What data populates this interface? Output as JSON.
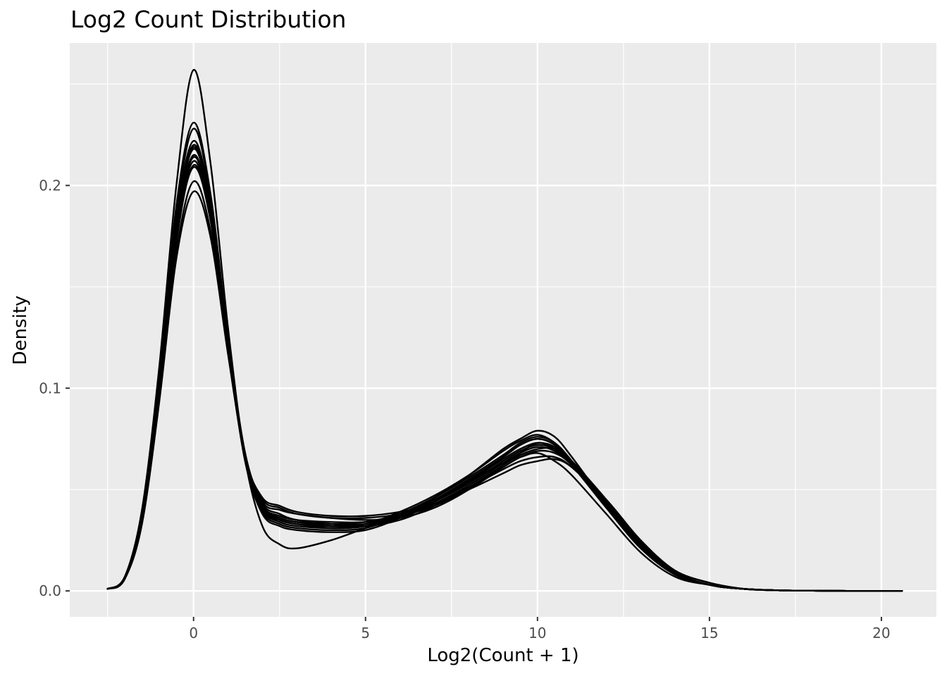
{
  "chart_data": {
    "type": "line",
    "title": "Log2 Count Distribution",
    "xlabel": "Log2(Count + 1)",
    "ylabel": "Density",
    "xlim": [
      -3.6,
      21.6
    ],
    "ylim": [
      -0.0128,
      0.2703
    ],
    "x_ticks": [
      0,
      5,
      10,
      15,
      20
    ],
    "x_tick_labels": [
      "0",
      "5",
      "10",
      "15",
      "20"
    ],
    "y_ticks": [
      0.0,
      0.1,
      0.2
    ],
    "y_tick_labels": [
      "0.0",
      "0.1",
      "0.2"
    ],
    "grid": true,
    "legend": "none",
    "line_color": "#000000",
    "panel_background": "#ebebeb",
    "x": [
      -2.5,
      -2,
      -1.5,
      -1,
      -0.5,
      0,
      0.5,
      1,
      1.5,
      2,
      2.5,
      3,
      4,
      5,
      6,
      7,
      8,
      9,
      9.5,
      10,
      10.5,
      11,
      12,
      13,
      14,
      15,
      16,
      17,
      18,
      19,
      20,
      20.6
    ],
    "series": [
      {
        "values": [
          0.001,
          0.007,
          0.04,
          0.11,
          0.2,
          0.257,
          0.21,
          0.13,
          0.065,
          0.032,
          0.023,
          0.021,
          0.025,
          0.031,
          0.037,
          0.045,
          0.054,
          0.063,
          0.066,
          0.068,
          0.064,
          0.057,
          0.038,
          0.019,
          0.007,
          0.003,
          0.001,
          0.0003,
          0.0001,
          0,
          0,
          0
        ]
      },
      {
        "values": [
          0.001,
          0.006,
          0.038,
          0.106,
          0.19,
          0.231,
          0.195,
          0.125,
          0.068,
          0.044,
          0.04,
          0.038,
          0.036,
          0.035,
          0.036,
          0.041,
          0.05,
          0.062,
          0.068,
          0.073,
          0.07,
          0.062,
          0.041,
          0.021,
          0.008,
          0.003,
          0.001,
          0.0003,
          0.0001,
          0,
          0,
          0
        ]
      },
      {
        "values": [
          0.001,
          0.006,
          0.037,
          0.104,
          0.186,
          0.228,
          0.193,
          0.124,
          0.066,
          0.042,
          0.036,
          0.034,
          0.033,
          0.034,
          0.038,
          0.045,
          0.054,
          0.066,
          0.072,
          0.075,
          0.072,
          0.063,
          0.042,
          0.022,
          0.009,
          0.003,
          0.001,
          0.0003,
          0.0001,
          0,
          0,
          0
        ]
      },
      {
        "values": [
          0.001,
          0.006,
          0.037,
          0.102,
          0.183,
          0.222,
          0.19,
          0.123,
          0.066,
          0.041,
          0.035,
          0.033,
          0.032,
          0.033,
          0.039,
          0.047,
          0.057,
          0.069,
          0.074,
          0.077,
          0.073,
          0.064,
          0.042,
          0.022,
          0.009,
          0.003,
          0.001,
          0.0003,
          0.0001,
          0,
          0,
          0
        ]
      },
      {
        "values": [
          0.001,
          0.006,
          0.036,
          0.1,
          0.18,
          0.218,
          0.188,
          0.122,
          0.065,
          0.04,
          0.034,
          0.032,
          0.031,
          0.032,
          0.038,
          0.046,
          0.056,
          0.067,
          0.073,
          0.076,
          0.073,
          0.064,
          0.043,
          0.022,
          0.009,
          0.003,
          0.001,
          0.0003,
          0.0001,
          0,
          0,
          0
        ]
      },
      {
        "values": [
          0.001,
          0.006,
          0.036,
          0.1,
          0.178,
          0.215,
          0.186,
          0.121,
          0.064,
          0.039,
          0.033,
          0.031,
          0.03,
          0.031,
          0.037,
          0.045,
          0.055,
          0.066,
          0.072,
          0.075,
          0.072,
          0.063,
          0.042,
          0.022,
          0.009,
          0.003,
          0.001,
          0.0003,
          0.0001,
          0,
          0,
          0
        ]
      },
      {
        "values": [
          0.001,
          0.006,
          0.035,
          0.098,
          0.175,
          0.212,
          0.184,
          0.12,
          0.064,
          0.038,
          0.032,
          0.03,
          0.029,
          0.03,
          0.036,
          0.044,
          0.054,
          0.065,
          0.07,
          0.073,
          0.071,
          0.063,
          0.042,
          0.022,
          0.009,
          0.003,
          0.001,
          0.0003,
          0.0001,
          0,
          0,
          0
        ]
      },
      {
        "values": [
          0.001,
          0.006,
          0.035,
          0.097,
          0.173,
          0.209,
          0.182,
          0.119,
          0.065,
          0.041,
          0.036,
          0.034,
          0.032,
          0.032,
          0.036,
          0.043,
          0.052,
          0.063,
          0.068,
          0.071,
          0.069,
          0.062,
          0.042,
          0.022,
          0.009,
          0.003,
          0.001,
          0.0003,
          0.0001,
          0,
          0,
          0
        ]
      },
      {
        "values": [
          0.001,
          0.006,
          0.035,
          0.096,
          0.172,
          0.21,
          0.183,
          0.12,
          0.065,
          0.042,
          0.037,
          0.035,
          0.034,
          0.034,
          0.037,
          0.042,
          0.05,
          0.061,
          0.066,
          0.069,
          0.068,
          0.062,
          0.043,
          0.023,
          0.009,
          0.003,
          0.001,
          0.0003,
          0.0001,
          0,
          0,
          0
        ]
      },
      {
        "values": [
          0.001,
          0.006,
          0.034,
          0.094,
          0.167,
          0.202,
          0.177,
          0.118,
          0.066,
          0.045,
          0.041,
          0.038,
          0.036,
          0.036,
          0.038,
          0.043,
          0.051,
          0.06,
          0.064,
          0.066,
          0.066,
          0.061,
          0.044,
          0.024,
          0.01,
          0.004,
          0.001,
          0.0003,
          0.0001,
          0,
          0,
          0
        ]
      },
      {
        "values": [
          0.001,
          0.006,
          0.033,
          0.093,
          0.164,
          0.197,
          0.174,
          0.117,
          0.066,
          0.046,
          0.042,
          0.039,
          0.037,
          0.037,
          0.039,
          0.043,
          0.05,
          0.058,
          0.062,
          0.064,
          0.065,
          0.061,
          0.045,
          0.025,
          0.01,
          0.004,
          0.001,
          0.0003,
          0.0001,
          0,
          0,
          0
        ]
      },
      {
        "values": [
          0.001,
          0.006,
          0.036,
          0.101,
          0.181,
          0.22,
          0.189,
          0.122,
          0.065,
          0.04,
          0.035,
          0.033,
          0.031,
          0.032,
          0.037,
          0.046,
          0.057,
          0.07,
          0.075,
          0.079,
          0.076,
          0.066,
          0.043,
          0.022,
          0.008,
          0.003,
          0.001,
          0.0003,
          0.0001,
          0,
          0,
          0
        ]
      },
      {
        "values": [
          0.001,
          0.006,
          0.035,
          0.099,
          0.177,
          0.214,
          0.186,
          0.121,
          0.066,
          0.043,
          0.038,
          0.035,
          0.033,
          0.032,
          0.035,
          0.042,
          0.051,
          0.062,
          0.067,
          0.07,
          0.07,
          0.064,
          0.045,
          0.024,
          0.01,
          0.004,
          0.001,
          0.0003,
          0.0001,
          0,
          0,
          0
        ]
      },
      {
        "values": [
          0.001,
          0.006,
          0.036,
          0.101,
          0.181,
          0.219,
          0.188,
          0.122,
          0.065,
          0.041,
          0.036,
          0.034,
          0.033,
          0.033,
          0.037,
          0.044,
          0.053,
          0.064,
          0.069,
          0.072,
          0.07,
          0.063,
          0.044,
          0.023,
          0.009,
          0.003,
          0.001,
          0.0003,
          0.0001,
          0,
          0,
          0
        ]
      }
    ]
  }
}
